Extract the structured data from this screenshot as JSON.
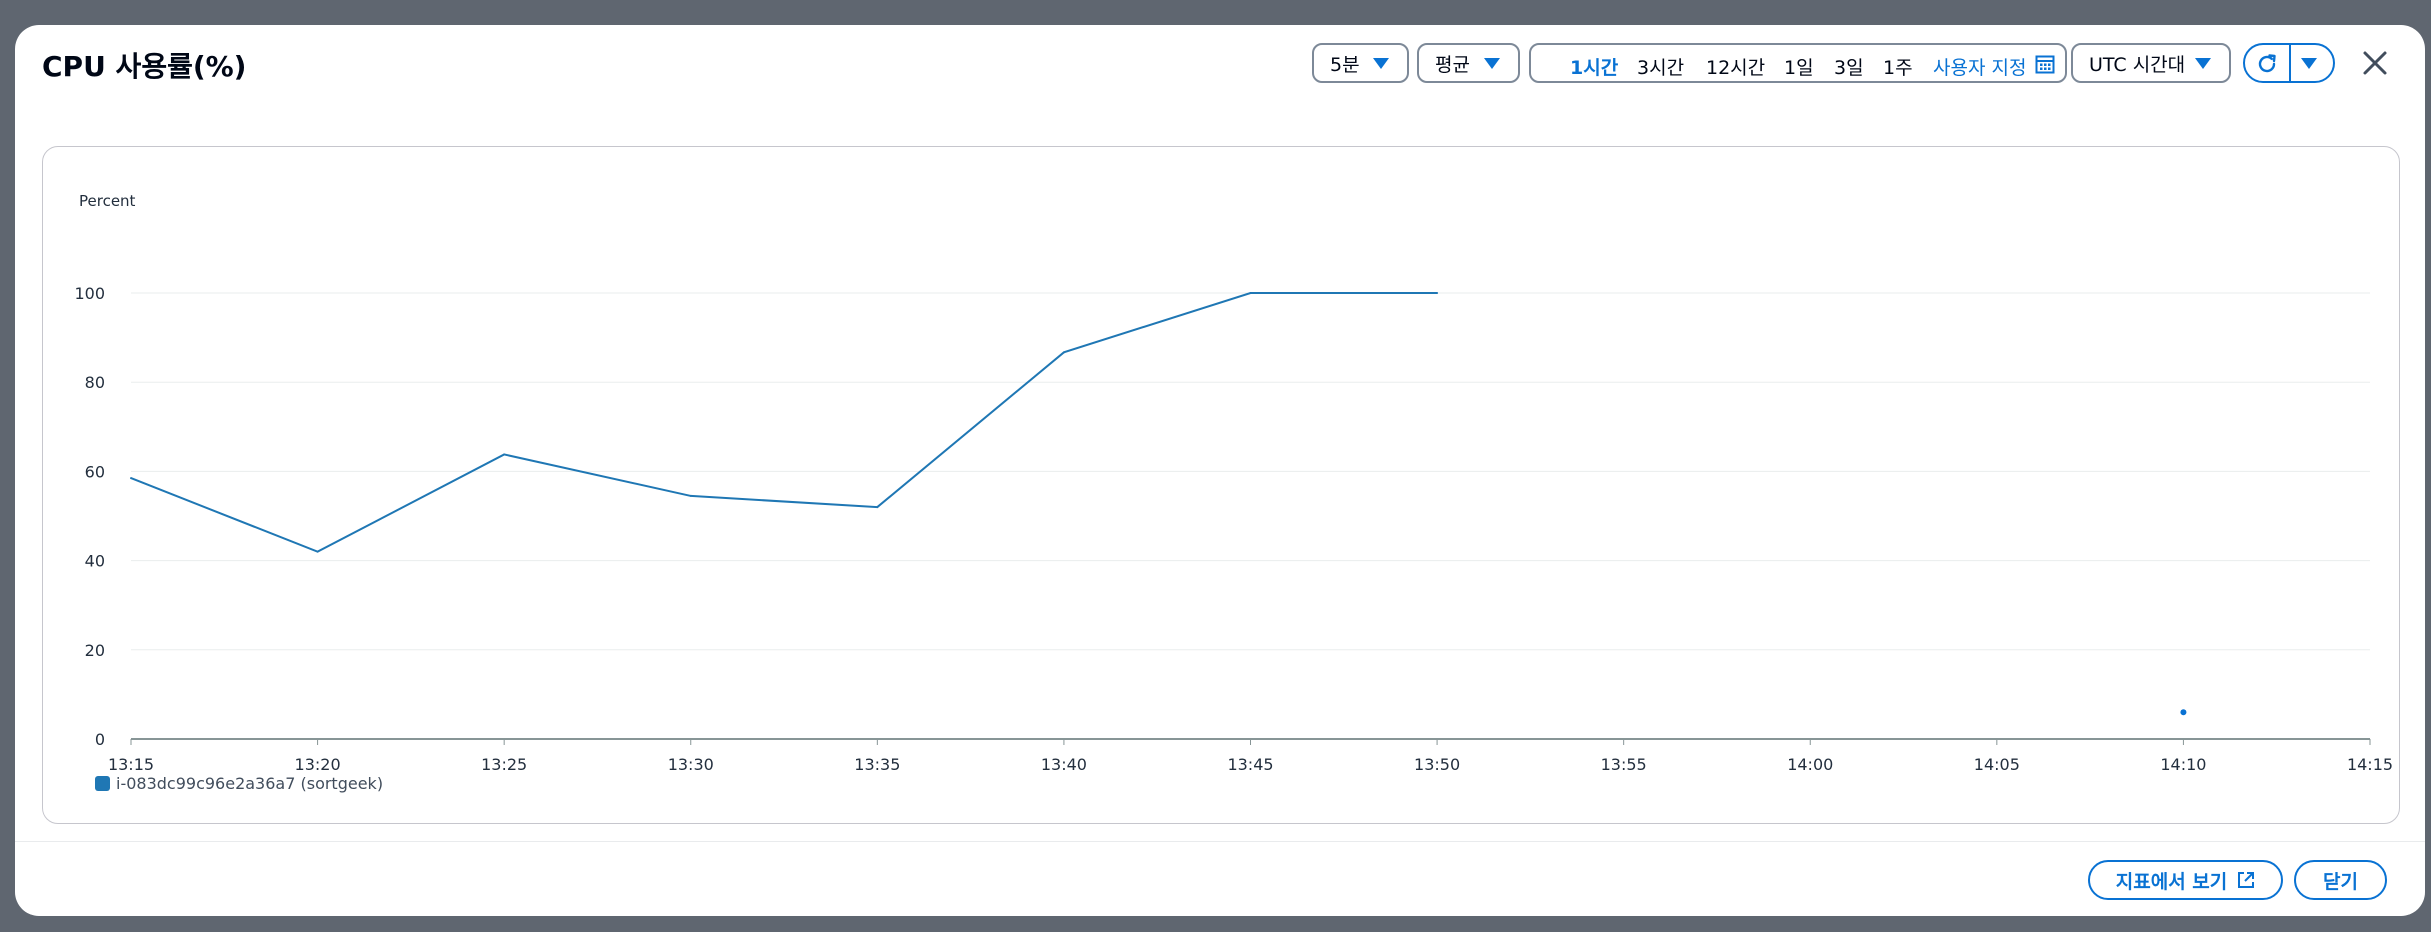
{
  "modal": {
    "title": "CPU 사용률(%)",
    "period_select": "5분",
    "statistic_select": "평균",
    "time_ranges": [
      {
        "label": "1시간",
        "active": true
      },
      {
        "label": "3시간",
        "active": false
      },
      {
        "label": "12시간",
        "active": false
      },
      {
        "label": "1일",
        "active": false
      },
      {
        "label": "3일",
        "active": false
      },
      {
        "label": "1주",
        "active": false
      }
    ],
    "custom_range": "사용자 지정",
    "timezone_select": "UTC 시간대",
    "footer": {
      "view_in_metrics": "지표에서 보기",
      "close": "닫기"
    }
  },
  "colors": {
    "accent": "#0972d3",
    "series": "#1f77b4"
  },
  "icons": [
    "calendar-icon",
    "refresh-icon",
    "caret-down-icon",
    "close-icon",
    "external-link-icon"
  ],
  "chart_data": {
    "type": "line",
    "ylabel": "Percent",
    "ylim": [
      0,
      100
    ],
    "yticks": [
      "0",
      "20",
      "40",
      "60",
      "80",
      "100"
    ],
    "xticks": [
      "13:15",
      "13:20",
      "13:25",
      "13:30",
      "13:35",
      "13:40",
      "13:45",
      "13:50",
      "13:55",
      "14:00",
      "14:05",
      "14:10",
      "14:15"
    ],
    "grid": true,
    "legend": "bottom-left",
    "series": [
      {
        "name": "i-083dc99c96e2a36a7 (sortgeek)",
        "x": [
          "13:15",
          "13:20",
          "13:25",
          "13:30",
          "13:35",
          "13:40",
          "13:45",
          "13:50"
        ],
        "y": [
          58.5,
          42,
          63.8,
          54.5,
          52,
          86.7,
          100,
          100
        ]
      }
    ]
  }
}
